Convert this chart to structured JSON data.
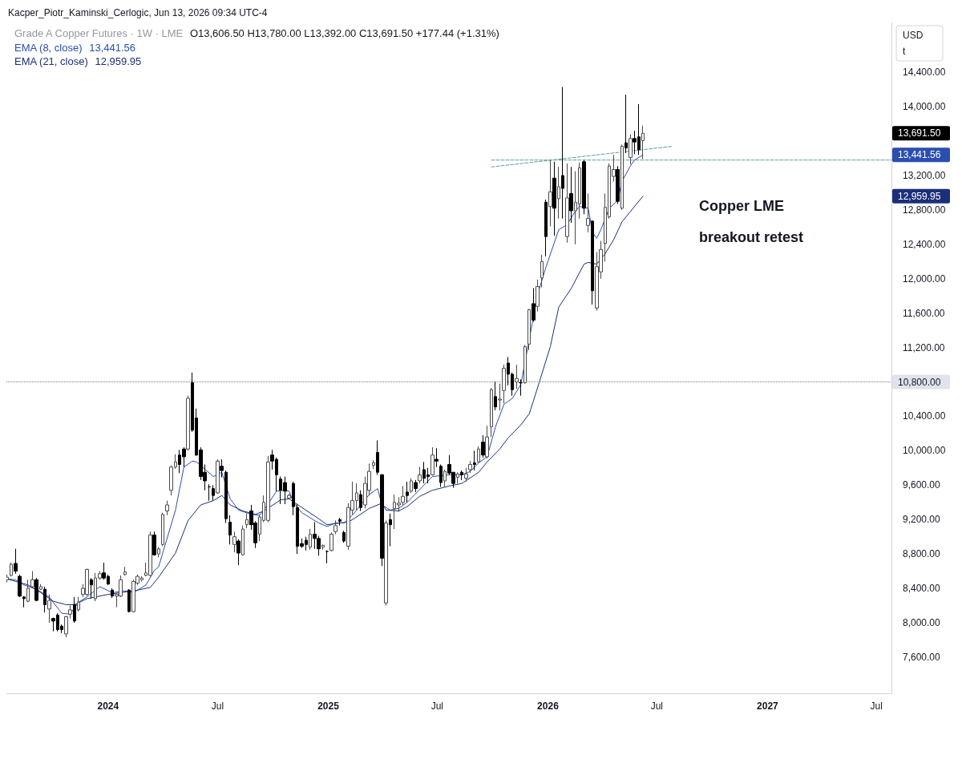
{
  "chart_data": {
    "type": "candlestick",
    "title": "Grade A Copper Futures · 1W · LME",
    "subtitle": "O13,606.50 H13,780.00 L13,392.00 C13,691.50 +177.44 (+1.31%)",
    "annotations": [
      "Kacper_Piotr_Kaminski_Cerlogic, Jun 13, 2026 09:34 UTC-4",
      "USD",
      "t",
      "Copper LME",
      "breakout retest",
      "13,691.50",
      "13,441.56",
      "12,959.95",
      "13,441.56",
      "12,959.95"
    ],
    "x": [
      "2023-07-17",
      "2023-07-24",
      "2023-07-31",
      "2023-08-07",
      "2023-08-14",
      "2023-08-21",
      "2023-08-28",
      "2023-09-04",
      "2023-09-11",
      "2023-09-18",
      "2023-09-25",
      "2023-10-02",
      "2023-10-09",
      "2023-10-16",
      "2023-10-23",
      "2023-10-30",
      "2023-11-06",
      "2023-11-13",
      "2023-11-20",
      "2023-11-27",
      "2023-12-04",
      "2023-12-11",
      "2023-12-18",
      "2023-12-25",
      "2024-01-01",
      "2024-01-08",
      "2024-01-15",
      "2024-01-22",
      "2024-01-29",
      "2024-02-05",
      "2024-02-12",
      "2024-02-19",
      "2024-02-26",
      "2024-03-04",
      "2024-03-11",
      "2024-03-18",
      "2024-03-25",
      "2024-04-01",
      "2024-04-08",
      "2024-04-15",
      "2024-04-22",
      "2024-04-29",
      "2024-05-06",
      "2024-05-13",
      "2024-05-20",
      "2024-05-27",
      "2024-06-03",
      "2024-06-10",
      "2024-06-17",
      "2024-06-24",
      "2024-07-01",
      "2024-07-08",
      "2024-07-15",
      "2024-07-22",
      "2024-07-29",
      "2024-08-05",
      "2024-08-12",
      "2024-08-19",
      "2024-08-26",
      "2024-09-02",
      "2024-09-09",
      "2024-09-16",
      "2024-09-23",
      "2024-09-30",
      "2024-10-07",
      "2024-10-14",
      "2024-10-21",
      "2024-10-28",
      "2024-11-04",
      "2024-11-11",
      "2024-11-18",
      "2024-11-25",
      "2024-12-02",
      "2024-12-09",
      "2024-12-16",
      "2024-12-23",
      "2024-12-30",
      "2025-01-06",
      "2025-01-13",
      "2025-01-20",
      "2025-01-27",
      "2025-02-03",
      "2025-02-10",
      "2025-02-17",
      "2025-02-24",
      "2025-03-03",
      "2025-03-10",
      "2025-03-17",
      "2025-03-24",
      "2025-03-31",
      "2025-04-07",
      "2025-04-14",
      "2025-04-21",
      "2025-04-28",
      "2025-05-05",
      "2025-05-12",
      "2025-05-19",
      "2025-05-26",
      "2025-06-02",
      "2025-06-09",
      "2025-06-16",
      "2025-06-23",
      "2025-06-30",
      "2025-07-07",
      "2025-07-14",
      "2025-07-21",
      "2025-07-28",
      "2025-08-04",
      "2025-08-11",
      "2025-08-18",
      "2025-08-25",
      "2025-09-01",
      "2025-09-08",
      "2025-09-15",
      "2025-09-22",
      "2025-09-29",
      "2025-10-06",
      "2025-10-13",
      "2025-10-20",
      "2025-10-27",
      "2025-11-03",
      "2025-11-10",
      "2025-11-17",
      "2025-11-24",
      "2025-12-01",
      "2025-12-08",
      "2025-12-15",
      "2025-12-22",
      "2025-12-29",
      "2026-01-05",
      "2026-01-12",
      "2026-01-19",
      "2026-01-26",
      "2026-02-02",
      "2026-02-09",
      "2026-02-16",
      "2026-02-23",
      "2026-03-02",
      "2026-03-09",
      "2026-03-16",
      "2026-03-23",
      "2026-03-30",
      "2026-04-06",
      "2026-04-13",
      "2026-04-20",
      "2026-04-27",
      "2026-05-04",
      "2026-05-11",
      "2026-05-18",
      "2026-05-25",
      "2026-06-01",
      "2026-06-08"
    ],
    "ohlc": [
      [
        8500,
        8560,
        8470,
        8530
      ],
      [
        8550,
        8700,
        8540,
        8680
      ],
      [
        8690,
        8860,
        8570,
        8600
      ],
      [
        8540,
        8560,
        8300,
        8310
      ],
      [
        8300,
        8310,
        8180,
        8280
      ],
      [
        8250,
        8500,
        8240,
        8400
      ],
      [
        8420,
        8600,
        8400,
        8500
      ],
      [
        8500,
        8520,
        8250,
        8260
      ],
      [
        8390,
        8450,
        8380,
        8420
      ],
      [
        8390,
        8420,
        8120,
        8210
      ],
      [
        8160,
        8330,
        8000,
        8260
      ],
      [
        8050,
        8060,
        7900,
        8020
      ],
      [
        8090,
        8110,
        7900,
        7920
      ],
      [
        7960,
        7980,
        7880,
        7920
      ],
      [
        7870,
        8080,
        7830,
        8070
      ],
      [
        8100,
        8200,
        8050,
        8150
      ],
      [
        8210,
        8300,
        8000,
        8020
      ],
      [
        8150,
        8300,
        8130,
        8240
      ],
      [
        8330,
        8450,
        8300,
        8400
      ],
      [
        8330,
        8630,
        8310,
        8620
      ],
      [
        8500,
        8520,
        8280,
        8440
      ],
      [
        8280,
        8580,
        8250,
        8520
      ],
      [
        8520,
        8600,
        8500,
        8570
      ],
      [
        8580,
        8700,
        8500,
        8520
      ],
      [
        8540,
        8560,
        8440,
        8450
      ],
      [
        8380,
        8400,
        8290,
        8310
      ],
      [
        8310,
        8330,
        8180,
        8330
      ],
      [
        8310,
        8550,
        8300,
        8500
      ],
      [
        8560,
        8650,
        8550,
        8590
      ],
      [
        8380,
        8390,
        8120,
        8130
      ],
      [
        8130,
        8500,
        8120,
        8480
      ],
      [
        8460,
        8560,
        8440,
        8540
      ],
      [
        8500,
        8540,
        8480,
        8520
      ],
      [
        8550,
        8700,
        8540,
        8580
      ],
      [
        8550,
        9060,
        8540,
        9020
      ],
      [
        9020,
        9060,
        8780,
        8790
      ],
      [
        8800,
        8880,
        8760,
        8860
      ],
      [
        8910,
        9280,
        8890,
        9260
      ],
      [
        9300,
        9420,
        9250,
        9370
      ],
      [
        9540,
        9830,
        9480,
        9810
      ],
      [
        9810,
        9960,
        9790,
        9870
      ],
      [
        9950,
        10010,
        9740,
        9840
      ],
      [
        10020,
        10040,
        9810,
        9930
      ],
      [
        10020,
        10640,
        10000,
        10610
      ],
      [
        10790,
        10910,
        10220,
        10240
      ],
      [
        10380,
        10490,
        9940,
        9950
      ],
      [
        10010,
        10040,
        9660,
        9700
      ],
      [
        9750,
        9840,
        9540,
        9650
      ],
      [
        9580,
        9610,
        9420,
        9580
      ],
      [
        9560,
        9600,
        9420,
        9480
      ],
      [
        9510,
        9900,
        9500,
        9880
      ],
      [
        9820,
        9900,
        9690,
        9770
      ],
      [
        9750,
        9770,
        9160,
        9210
      ],
      [
        9170,
        9250,
        8910,
        9020
      ],
      [
        8910,
        9060,
        8820,
        9000
      ],
      [
        8950,
        8970,
        8670,
        8810
      ],
      [
        8790,
        9130,
        8780,
        9090
      ],
      [
        9140,
        9270,
        9100,
        9200
      ],
      [
        9300,
        9370,
        9080,
        9140
      ],
      [
        9160,
        9180,
        8870,
        8930
      ],
      [
        9030,
        9260,
        8950,
        9230
      ],
      [
        9190,
        9480,
        9170,
        9400
      ],
      [
        9190,
        9940,
        9170,
        9870
      ],
      [
        9950,
        10010,
        9780,
        9880
      ],
      [
        9900,
        9920,
        9530,
        9720
      ],
      [
        9670,
        9700,
        9380,
        9540
      ],
      [
        9630,
        9700,
        9380,
        9530
      ],
      [
        9450,
        9500,
        9440,
        9480
      ],
      [
        9620,
        9640,
        9250,
        9350
      ],
      [
        9340,
        9380,
        8800,
        8890
      ],
      [
        8920,
        8980,
        8870,
        8890
      ],
      [
        8960,
        9000,
        8840,
        8910
      ],
      [
        8880,
        9090,
        8850,
        9030
      ],
      [
        9030,
        9170,
        8860,
        8980
      ],
      [
        8980,
        9010,
        8780,
        8860
      ],
      [
        8880,
        8910,
        8850,
        8900
      ],
      [
        8830,
        8840,
        8690,
        8830
      ],
      [
        8840,
        9050,
        8830,
        9030
      ],
      [
        9060,
        9190,
        9030,
        9130
      ],
      [
        9200,
        9220,
        9130,
        9180
      ],
      [
        9050,
        9070,
        8930,
        8950
      ],
      [
        8890,
        9390,
        8850,
        9340
      ],
      [
        9310,
        9640,
        9260,
        9420
      ],
      [
        9420,
        9620,
        9310,
        9510
      ],
      [
        9490,
        9540,
        9300,
        9340
      ],
      [
        9370,
        9700,
        9330,
        9620
      ],
      [
        9540,
        9850,
        9480,
        9760
      ],
      [
        9830,
        9890,
        9790,
        9860
      ],
      [
        9980,
        10120,
        9720,
        9750
      ],
      [
        9720,
        9730,
        8660,
        8750
      ],
      [
        8230,
        9190,
        8200,
        9160
      ],
      [
        9200,
        9270,
        8890,
        9140
      ],
      [
        9330,
        9490,
        9090,
        9400
      ],
      [
        9370,
        9460,
        9290,
        9390
      ],
      [
        9400,
        9590,
        9370,
        9470
      ],
      [
        9520,
        9640,
        9400,
        9480
      ],
      [
        9530,
        9680,
        9510,
        9650
      ],
      [
        9630,
        9660,
        9520,
        9560
      ],
      [
        9650,
        9810,
        9620,
        9720
      ],
      [
        9780,
        9870,
        9620,
        9680
      ],
      [
        9720,
        9800,
        9620,
        9700
      ],
      [
        9720,
        10040,
        9710,
        9950
      ],
      [
        9900,
        10030,
        9810,
        9880
      ],
      [
        9820,
        9840,
        9580,
        9630
      ],
      [
        9650,
        9780,
        9580,
        9760
      ],
      [
        9840,
        9950,
        9720,
        9740
      ],
      [
        9750,
        9750,
        9570,
        9620
      ],
      [
        9690,
        9750,
        9620,
        9730
      ],
      [
        9750,
        9770,
        9660,
        9720
      ],
      [
        9680,
        9800,
        9640,
        9730
      ],
      [
        9780,
        9880,
        9740,
        9840
      ],
      [
        9860,
        10000,
        9770,
        9840
      ],
      [
        9870,
        10050,
        9860,
        10020
      ],
      [
        10100,
        10180,
        9920,
        9950
      ],
      [
        9930,
        10290,
        9910,
        10160
      ],
      [
        10280,
        10730,
        10160,
        10710
      ],
      [
        10630,
        10800,
        10470,
        10510
      ],
      [
        10590,
        10780,
        10470,
        10600
      ],
      [
        10700,
        11000,
        10550,
        10960
      ],
      [
        11020,
        11090,
        10760,
        10890
      ],
      [
        10890,
        10910,
        10640,
        10710
      ],
      [
        10800,
        11000,
        10720,
        10840
      ],
      [
        10790,
        10830,
        10640,
        10790
      ],
      [
        10790,
        11230,
        10780,
        11210
      ],
      [
        11240,
        11650,
        11170,
        11640
      ],
      [
        11710,
        11890,
        11500,
        11520
      ],
      [
        11680,
        11990,
        11620,
        11910
      ],
      [
        12010,
        12280,
        11900,
        12200
      ],
      [
        12890,
        12920,
        12260,
        12490
      ],
      [
        12840,
        13380,
        12610,
        13010
      ],
      [
        13170,
        13360,
        12500,
        12820
      ],
      [
        12930,
        13300,
        12700,
        13070
      ],
      [
        13200,
        14230,
        12700,
        13050
      ],
      [
        12490,
        13340,
        12420,
        12940
      ],
      [
        12990,
        13300,
        12650,
        12790
      ],
      [
        12790,
        13250,
        12400,
        12890
      ],
      [
        12870,
        13350,
        12700,
        13290
      ],
      [
        13360,
        13380,
        12750,
        12820
      ],
      [
        12620,
        12990,
        12540,
        12700
      ],
      [
        12670,
        12680,
        11700,
        11860
      ],
      [
        11660,
        12310,
        11630,
        12140
      ],
      [
        12080,
        12440,
        12000,
        12340
      ],
      [
        12410,
        12990,
        12200,
        12830
      ],
      [
        12720,
        13340,
        12700,
        13310
      ],
      [
        13190,
        13440,
        13130,
        13270
      ],
      [
        13270,
        13310,
        12870,
        12900
      ],
      [
        12820,
        13560,
        12800,
        13540
      ],
      [
        13580,
        14140,
        13460,
        13520
      ],
      [
        13410,
        13680,
        13330,
        13630
      ],
      [
        13630,
        13720,
        13450,
        13590
      ],
      [
        13650,
        14030,
        13440,
        13500
      ],
      [
        13606.5,
        13780,
        13392,
        13691.5
      ]
    ],
    "series": [
      {
        "name": "EMA (8, close)",
        "type": "line",
        "color": "#2a4fb0",
        "x": [
          "2023-07-17",
          "2023-07-31",
          "2023-08-14",
          "2023-09-04",
          "2023-09-25",
          "2023-10-16",
          "2023-10-30",
          "2023-11-13",
          "2023-11-27",
          "2023-12-18",
          "2024-01-08",
          "2024-01-29",
          "2024-02-12",
          "2024-03-04",
          "2024-03-18",
          "2024-03-25",
          "2024-04-22",
          "2024-05-06",
          "2024-05-20",
          "2024-05-27",
          "2024-06-24",
          "2024-07-08",
          "2024-07-22",
          "2024-08-05",
          "2024-08-26",
          "2024-09-09",
          "2024-09-16",
          "2024-10-07",
          "2024-10-14",
          "2024-10-28",
          "2024-11-04",
          "2024-11-18",
          "2024-12-16",
          "2024-12-30",
          "2025-01-13",
          "2025-01-27",
          "2025-02-10",
          "2025-02-24",
          "2025-03-10",
          "2025-03-24",
          "2025-03-31",
          "2025-04-14",
          "2025-04-28",
          "2025-05-12",
          "2025-06-23",
          "2025-07-21",
          "2025-08-11",
          "2025-08-25",
          "2025-09-08",
          "2025-09-22",
          "2025-10-06",
          "2025-10-20",
          "2025-11-03",
          "2025-11-17",
          "2025-12-15",
          "2025-12-29",
          "2026-01-19",
          "2026-02-02",
          "2026-02-16",
          "2026-02-23",
          "2026-03-09",
          "2026-03-16",
          "2026-03-23",
          "2026-03-30",
          "2026-04-13",
          "2026-04-27",
          "2026-05-04",
          "2026-05-18",
          "2026-05-25",
          "2026-06-08"
        ],
        "values": [
          8510,
          8500,
          8440,
          8390,
          8300,
          8110,
          8100,
          8240,
          8300,
          8420,
          8350,
          8370,
          8350,
          8440,
          8610,
          8650,
          9310,
          9810,
          9880,
          9870,
          9700,
          9750,
          9440,
          9310,
          9260,
          9250,
          9310,
          9530,
          9540,
          9530,
          9400,
          9280,
          9160,
          9120,
          9160,
          9160,
          9250,
          9370,
          9490,
          9560,
          9370,
          9310,
          9330,
          9400,
          9700,
          9720,
          9720,
          9760,
          9860,
          9930,
          10280,
          10540,
          10610,
          10770,
          11820,
          12140,
          12570,
          12630,
          12790,
          12840,
          12820,
          12540,
          12470,
          12570,
          12820,
          12910,
          13130,
          13310,
          13380,
          13440
        ]
      },
      {
        "name": "EMA (21, close)",
        "type": "line",
        "color": "#1b2f7a",
        "x": [
          "2023-07-17",
          "2023-08-21",
          "2023-09-11",
          "2023-10-02",
          "2023-10-23",
          "2023-11-06",
          "2023-11-27",
          "2024-01-01",
          "2024-01-22",
          "2024-02-12",
          "2024-03-11",
          "2024-03-25",
          "2024-04-22",
          "2024-05-13",
          "2024-06-03",
          "2024-06-24",
          "2024-07-08",
          "2024-07-22",
          "2024-08-12",
          "2024-09-02",
          "2024-09-16",
          "2024-10-14",
          "2024-10-28",
          "2024-11-18",
          "2024-12-16",
          "2024-12-30",
          "2025-01-20",
          "2025-02-03",
          "2025-02-17",
          "2025-03-10",
          "2025-03-31",
          "2025-04-07",
          "2025-04-28",
          "2025-05-12",
          "2025-06-02",
          "2025-06-23",
          "2025-07-21",
          "2025-08-11",
          "2025-09-08",
          "2025-09-22",
          "2025-10-13",
          "2025-10-27",
          "2025-11-17",
          "2025-12-01",
          "2025-12-08",
          "2026-01-05",
          "2026-01-19",
          "2026-02-09",
          "2026-03-02",
          "2026-03-09",
          "2026-03-23",
          "2026-04-06",
          "2026-04-20",
          "2026-05-04",
          "2026-06-08"
        ],
        "values": [
          8510,
          8440,
          8350,
          8250,
          8210,
          8210,
          8280,
          8330,
          8350,
          8370,
          8410,
          8530,
          8810,
          9190,
          9370,
          9420,
          9480,
          9370,
          9300,
          9260,
          9300,
          9430,
          9440,
          9340,
          9210,
          9140,
          9160,
          9170,
          9230,
          9330,
          9390,
          9310,
          9300,
          9350,
          9470,
          9540,
          9590,
          9620,
          9750,
          9870,
          10020,
          10150,
          10300,
          10430,
          10580,
          11210,
          11670,
          11890,
          12170,
          12190,
          12170,
          12290,
          12450,
          12660,
          12960
        ]
      },
      {
        "type": "line",
        "color": "#5f9ea0",
        "line_style": "dashed",
        "x": [
          "2025-09-29",
          "2026-07-27"
        ],
        "values": [
          13300,
          13540
        ]
      },
      {
        "type": "line",
        "color": "#5f9ea0",
        "line_style": "dashed",
        "x": [
          "2025-09-29",
          "2027-07-26"
        ],
        "values": [
          13380,
          13380
        ]
      }
    ],
    "ref_lines": [
      {
        "axis": "y",
        "value": 10800,
        "label": "10,800.00",
        "color": "#787b86",
        "line_style": "dotted"
      }
    ],
    "xlim": [
      "2023-07-16",
      "2027-07-26"
    ],
    "xticks": [
      {
        "value": "2024-01-01",
        "label": "2024"
      },
      {
        "value": "2024-07-01",
        "label": "Jul"
      },
      {
        "value": "2025-01-01",
        "label": "2025"
      },
      {
        "value": "2025-07-01",
        "label": "Jul"
      },
      {
        "value": "2026-01-01",
        "label": "2026"
      },
      {
        "value": "2026-07-01",
        "label": "Jul"
      },
      {
        "value": "2027-01-01",
        "label": "2027"
      },
      {
        "value": "2027-07-01",
        "label": "Jul"
      }
    ],
    "ylim": [
      7180,
      14980
    ],
    "yticks": [
      {
        "value": 7600,
        "label": "7,600.00"
      },
      {
        "value": 8000,
        "label": "8,000.00"
      },
      {
        "value": 8400,
        "label": "8,400.00"
      },
      {
        "value": 8800,
        "label": "8,800.00"
      },
      {
        "value": 9200,
        "label": "9,200.00"
      },
      {
        "value": 9600,
        "label": "9,600.00"
      },
      {
        "value": 10000,
        "label": "10,000.00"
      },
      {
        "value": 10400,
        "label": "10,400.00"
      },
      {
        "value": 11200,
        "label": "11,200.00"
      },
      {
        "value": 11600,
        "label": "11,600.00"
      },
      {
        "value": 12000,
        "label": "12,000.00"
      },
      {
        "value": 12400,
        "label": "12,400.00"
      },
      {
        "value": 12800,
        "label": "12,800.00"
      },
      {
        "value": 13200,
        "label": "13,200.00"
      },
      {
        "value": 14000,
        "label": "14,000.00"
      },
      {
        "value": 14400,
        "label": "14,400.00"
      }
    ]
  }
}
